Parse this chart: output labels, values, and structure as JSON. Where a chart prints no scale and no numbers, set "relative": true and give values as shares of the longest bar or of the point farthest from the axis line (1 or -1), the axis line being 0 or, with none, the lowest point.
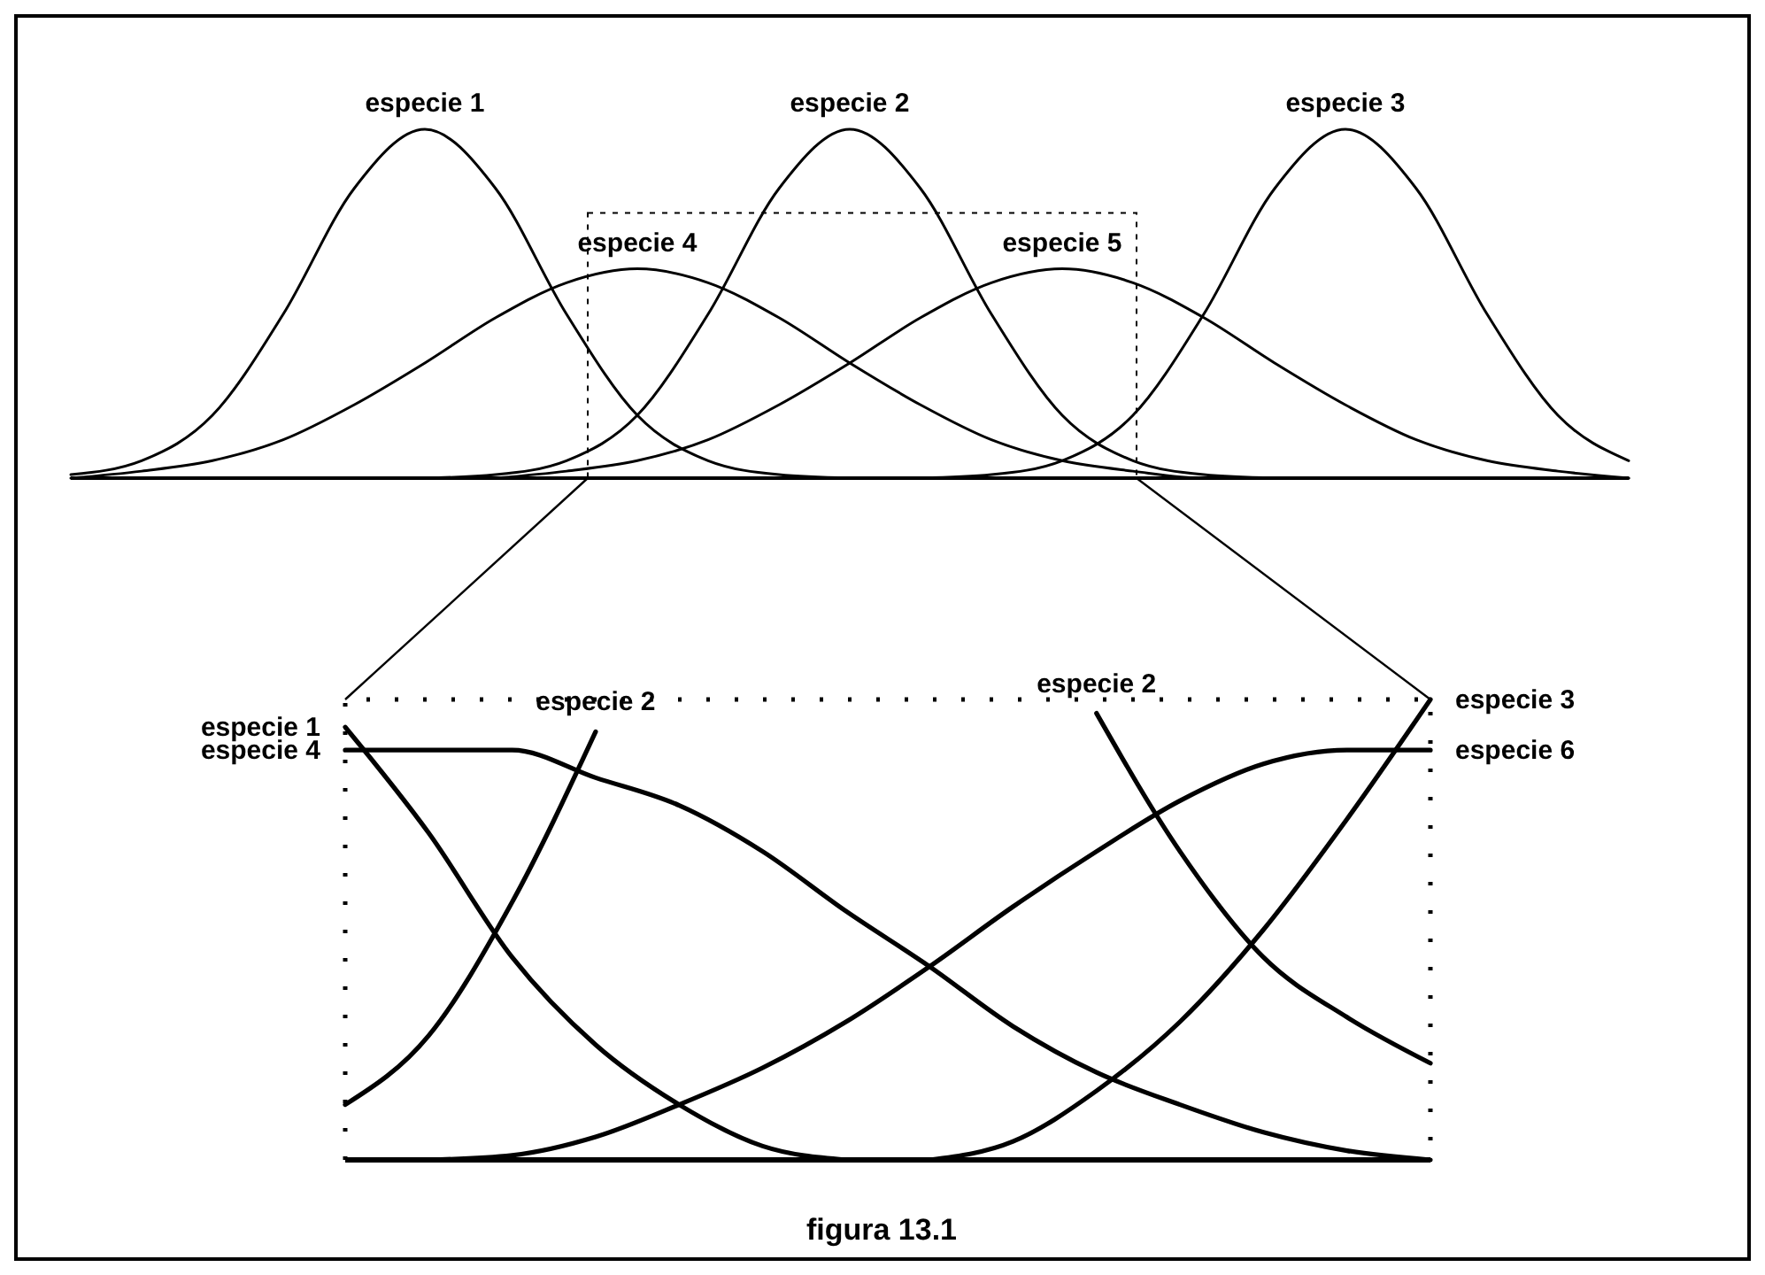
{
  "chart_data": [
    {
      "type": "line",
      "relative": true,
      "marker": "none",
      "line_style": "solid",
      "categories": [
        null,
        null,
        null,
        null,
        null,
        null,
        null,
        null,
        null,
        null,
        null,
        null,
        null,
        null,
        null,
        null,
        null,
        null,
        null,
        null,
        null,
        null,
        null
      ],
      "series": [
        {
          "name": "especie 1",
          "color": "#000000",
          "values": [
            0.01,
            0.05,
            0.18,
            0.47,
            0.83,
            1,
            0.83,
            0.47,
            0.18,
            0.05,
            0.01,
            0,
            null,
            null,
            null,
            null,
            null,
            null,
            null,
            null,
            null,
            null,
            null
          ]
        },
        {
          "name": "especie 2",
          "color": "#000000",
          "values": [
            null,
            null,
            null,
            null,
            null,
            0,
            0.01,
            0.05,
            0.18,
            0.47,
            0.83,
            1,
            0.83,
            0.47,
            0.18,
            0.05,
            0.01,
            0,
            null,
            null,
            null,
            null,
            null
          ]
        },
        {
          "name": "especie 3",
          "color": "#000000",
          "values": [
            null,
            null,
            null,
            null,
            null,
            null,
            null,
            null,
            null,
            null,
            null,
            null,
            0,
            0.01,
            0.05,
            0.18,
            0.47,
            0.83,
            1,
            0.83,
            0.47,
            0.18,
            0.05
          ]
        },
        {
          "name": "especie 4",
          "color": "#000000",
          "values": [
            0,
            0.02,
            0.05,
            0.11,
            0.21,
            0.33,
            0.46,
            0.56,
            0.6,
            0.56,
            0.46,
            0.33,
            0.21,
            0.11,
            0.05,
            0.02,
            0,
            0,
            0,
            0,
            0,
            0,
            0
          ]
        },
        {
          "name": "especie 5",
          "color": "#000000",
          "values": [
            null,
            null,
            null,
            null,
            null,
            null,
            0,
            0.02,
            0.05,
            0.11,
            0.21,
            0.33,
            0.46,
            0.56,
            0.6,
            0.56,
            0.46,
            0.33,
            0.21,
            0.11,
            0.05,
            0.02,
            0
          ]
        }
      ]
    },
    {
      "type": "line",
      "relative": true,
      "marker": "none",
      "line_style": "solid",
      "categories": [
        null,
        null,
        null,
        null,
        null,
        null,
        null,
        null,
        null,
        null,
        null,
        null,
        null,
        null
      ],
      "series": [
        {
          "name": "especie 1",
          "color": "#000000",
          "values": [
            0.94,
            0.71,
            0.44,
            0.25,
            0.12,
            0.03,
            0,
            null,
            null,
            null,
            null,
            null,
            null,
            null
          ]
        },
        {
          "name": "especie 2",
          "color": "#000000",
          "values": [
            0.12,
            0.27,
            0.56,
            0.93,
            null,
            null,
            null,
            null,
            null,
            0.97,
            0.67,
            0.44,
            0.31,
            0.21
          ]
        },
        {
          "name": "especie 3",
          "color": "#000000",
          "values": [
            null,
            null,
            null,
            null,
            null,
            null,
            null,
            0,
            0.04,
            0.15,
            0.3,
            0.5,
            0.74,
            1
          ]
        },
        {
          "name": "especie 4",
          "color": "#000000",
          "values": [
            0.89,
            0.89,
            0.89,
            0.83,
            0.77,
            0.67,
            0.54,
            0.42,
            0.29,
            0.19,
            0.12,
            0.06,
            0.02,
            0
          ]
        },
        {
          "name": "especie 6",
          "color": "#000000",
          "values": [
            null,
            0,
            0.01,
            0.05,
            0.12,
            0.2,
            0.3,
            0.42,
            0.55,
            0.67,
            0.78,
            0.86,
            0.89,
            0.89
          ]
        }
      ],
      "annotations": [
        "figura 13.1"
      ]
    }
  ]
}
